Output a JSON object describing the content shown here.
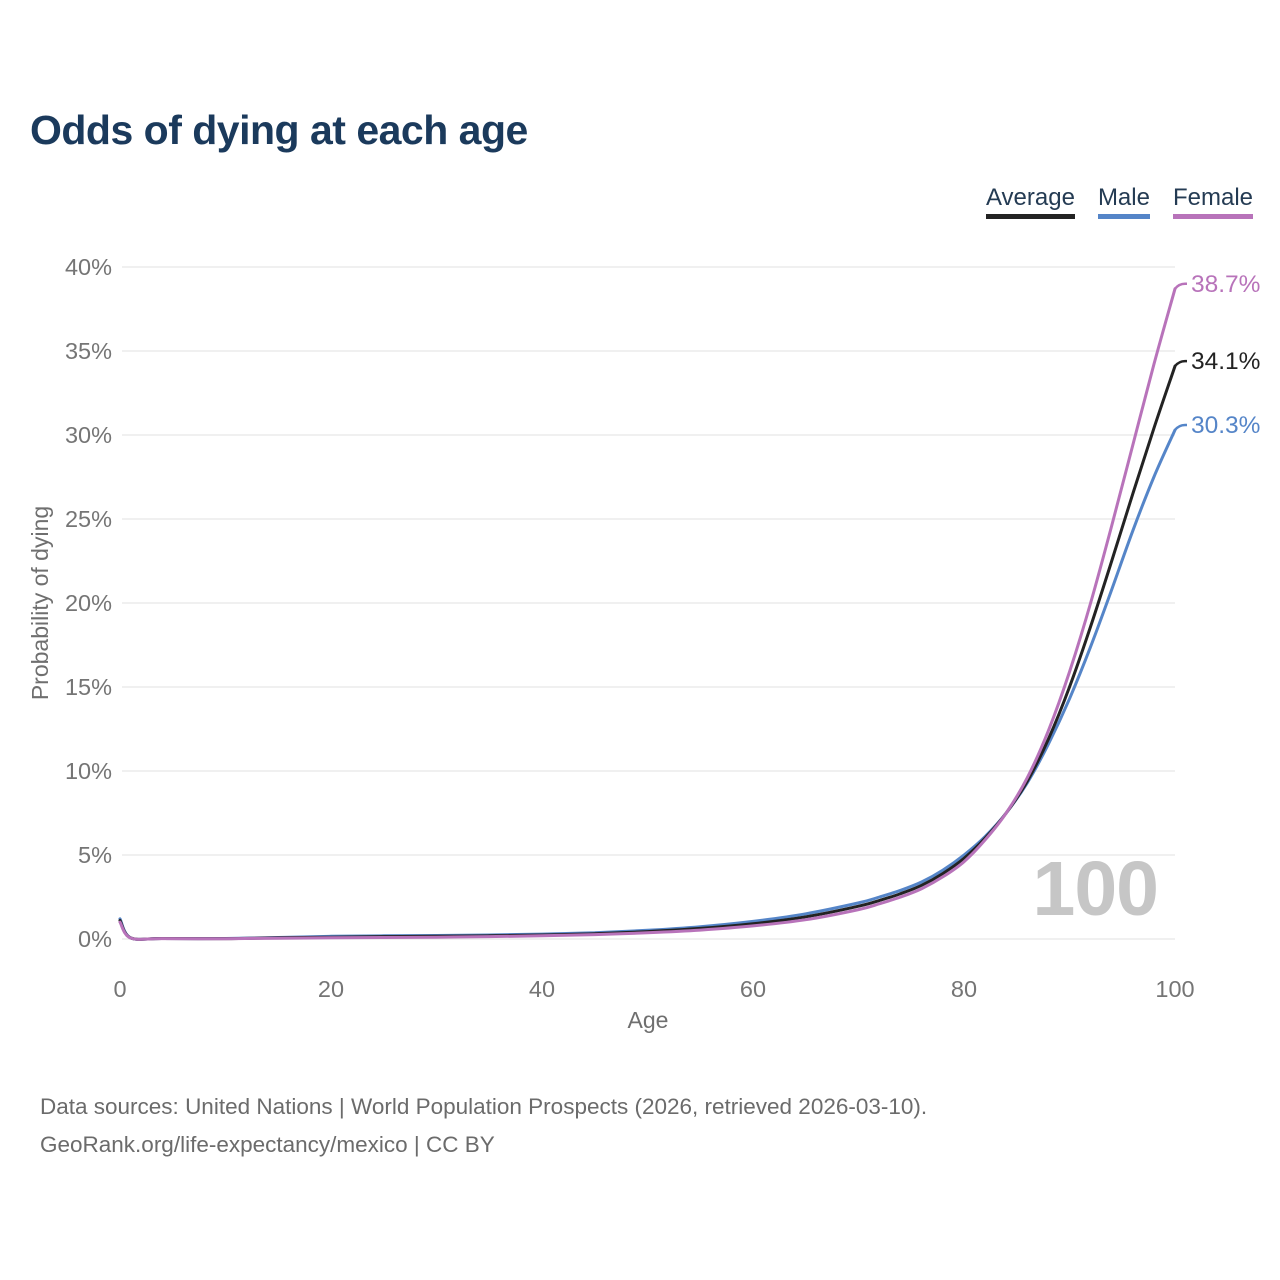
{
  "header": {
    "title": "Odds of dying at each age"
  },
  "legend": {
    "items": [
      {
        "label": "Average"
      },
      {
        "label": "Male"
      },
      {
        "label": "Female"
      }
    ]
  },
  "watermark": "100",
  "footer": {
    "line1": "Data sources: United Nations | World Population Prospects (2026, retrieved 2026-03-10).",
    "line2": "GeoRank.org/life-expectancy/mexico | CC BY"
  },
  "colors": {
    "title_text": "#1b3a5c",
    "legend_text": "#243b53",
    "tick_text": "#757575",
    "axis_title_text": "#6f6f6f",
    "grid": "#ececec",
    "watermark": "#c6c6c6",
    "footer_text": "#6b6b6b",
    "average": "#232323",
    "male": "#5585c8",
    "female": "#b873ba"
  },
  "chart_data": {
    "type": "line",
    "title": "Odds of dying at each age",
    "xlabel": "Age",
    "ylabel": "Probability of dying",
    "xlim": [
      0,
      100
    ],
    "ylim": [
      0,
      40
    ],
    "grid": "horizontal-only",
    "legend_position": "top-right",
    "x_ticks": [
      0,
      20,
      40,
      60,
      80,
      100
    ],
    "x_tick_labels": [
      "0",
      "20",
      "40",
      "60",
      "80",
      "100"
    ],
    "y_ticks": [
      0,
      5,
      10,
      15,
      20,
      25,
      30,
      35,
      40
    ],
    "y_tick_labels": [
      "0%",
      "5%",
      "10%",
      "15%",
      "20%",
      "25%",
      "30%",
      "35%",
      "40%"
    ],
    "x": [
      0,
      1,
      4,
      10,
      15,
      20,
      25,
      30,
      35,
      40,
      45,
      50,
      55,
      60,
      65,
      70,
      72,
      74,
      76,
      78,
      80,
      82,
      84,
      86,
      88,
      90,
      92,
      94,
      96,
      98,
      100
    ],
    "series": [
      {
        "name": "Average",
        "color": "#232323",
        "end_label": "34.1%",
        "end_value": 34.1,
        "values": [
          1.1,
          0.065,
          0.027,
          0.025,
          0.07,
          0.11,
          0.14,
          0.16,
          0.19,
          0.24,
          0.31,
          0.44,
          0.63,
          0.91,
          1.32,
          1.95,
          2.3,
          2.7,
          3.2,
          3.9,
          4.8,
          6.0,
          7.5,
          9.4,
          11.9,
          15.0,
          18.6,
          22.5,
          26.5,
          30.4,
          34.1
        ]
      },
      {
        "name": "Male",
        "color": "#5585c8",
        "end_label": "30.3%",
        "end_value": 30.3,
        "values": [
          1.2,
          0.07,
          0.03,
          0.03,
          0.09,
          0.16,
          0.19,
          0.21,
          0.24,
          0.29,
          0.37,
          0.52,
          0.73,
          1.05,
          1.5,
          2.15,
          2.5,
          2.9,
          3.4,
          4.1,
          5.0,
          6.1,
          7.5,
          9.3,
          11.6,
          14.3,
          17.4,
          20.8,
          24.3,
          27.5,
          30.3
        ]
      },
      {
        "name": "Female",
        "color": "#b873ba",
        "end_label": "38.7%",
        "end_value": 38.7,
        "values": [
          1.0,
          0.06,
          0.022,
          0.02,
          0.05,
          0.07,
          0.09,
          0.11,
          0.14,
          0.19,
          0.26,
          0.37,
          0.53,
          0.78,
          1.15,
          1.75,
          2.1,
          2.5,
          3.0,
          3.7,
          4.6,
          5.9,
          7.5,
          9.6,
          12.4,
          15.9,
          20.0,
          24.6,
          29.4,
          34.2,
          38.7
        ]
      }
    ]
  }
}
